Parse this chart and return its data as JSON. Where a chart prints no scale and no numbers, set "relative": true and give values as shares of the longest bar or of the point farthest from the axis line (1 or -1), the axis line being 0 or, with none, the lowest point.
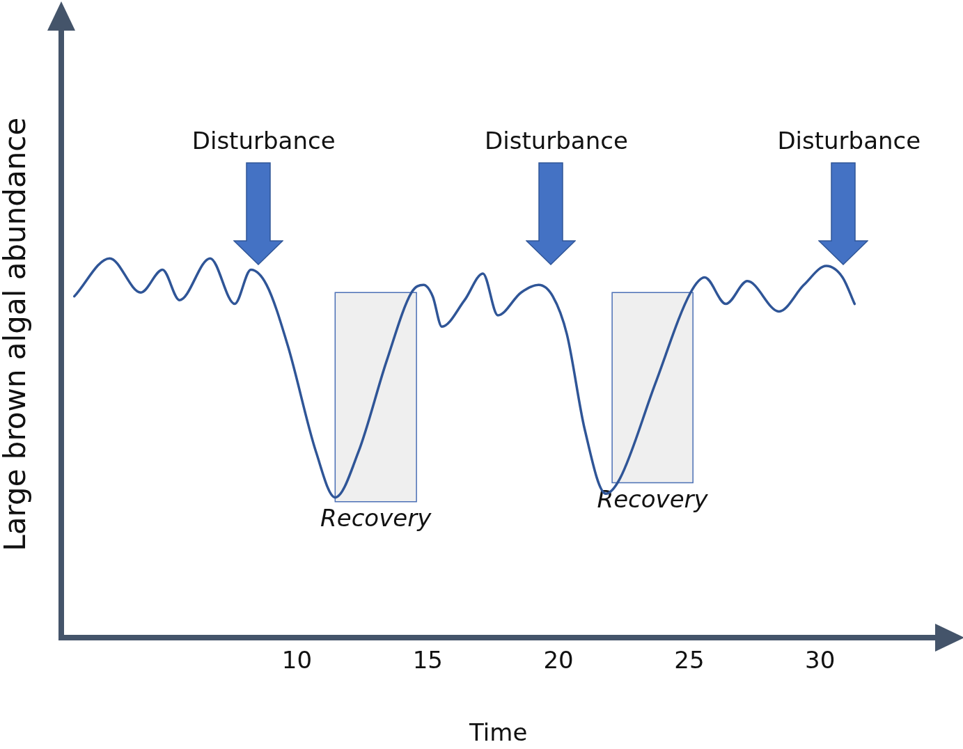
{
  "chart_data": {
    "type": "line",
    "relative": true,
    "xlabel": "Time",
    "ylabel": "Large brown algal abundance",
    "xlim": [
      1,
      34.4
    ],
    "xticks": [
      10,
      15,
      20,
      25,
      30
    ],
    "grid": false,
    "legend": false,
    "marker": "none",
    "line_style": "solid",
    "series": [
      {
        "color": "#2f5597",
        "x": [
          1.49,
          2.84,
          4.03,
          4.86,
          5.51,
          6.68,
          7.62,
          8.24,
          8.84,
          9.65,
          10.73,
          11.46,
          12.35,
          13.43,
          14.38,
          14.84,
          15.19,
          15.54,
          16.41,
          17.11,
          17.68,
          18.57,
          19.24,
          19.78,
          20.32,
          21.0,
          21.81,
          22.35,
          23.7,
          25.05,
          25.59,
          26.4,
          27.22,
          28.43,
          29.38,
          30.24,
          30.86,
          31.32
        ],
        "values": [
          0.9,
          1.0,
          0.91,
          0.97,
          0.89,
          1.0,
          0.88,
          0.97,
          0.93,
          0.77,
          0.49,
          0.37,
          0.49,
          0.73,
          0.91,
          0.93,
          0.9,
          0.82,
          0.89,
          0.96,
          0.85,
          0.91,
          0.93,
          0.9,
          0.8,
          0.55,
          0.38,
          0.42,
          0.67,
          0.91,
          0.95,
          0.88,
          0.94,
          0.86,
          0.93,
          0.98,
          0.95,
          0.88
        ]
      }
    ],
    "bands": [
      {
        "axis": "x",
        "from": 11.46,
        "to": 14.57,
        "label": "Recovery",
        "color": "#efefef"
      },
      {
        "axis": "x",
        "from": 22.05,
        "to": 25.14,
        "label": "Recovery",
        "color": "#efefef"
      }
    ],
    "annotations": [
      "Disturbance",
      "Disturbance",
      "Disturbance"
    ]
  }
}
